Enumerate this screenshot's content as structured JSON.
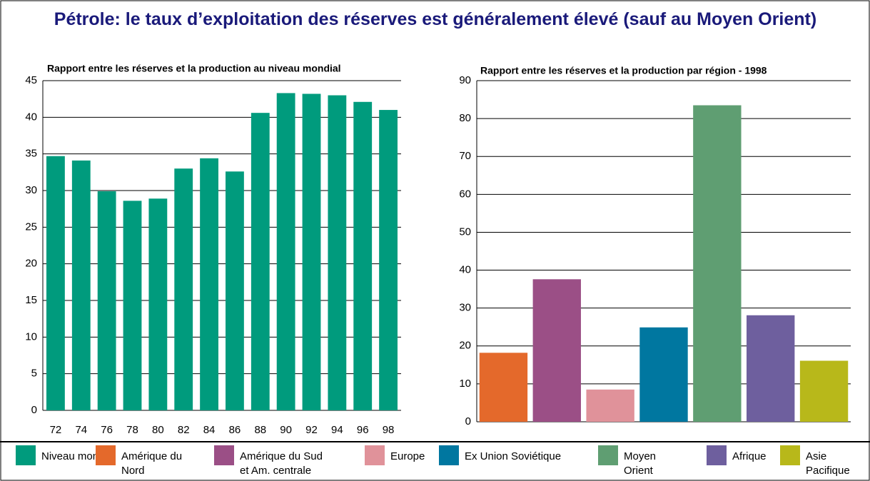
{
  "title": "Pétrole: le taux d’exploitation des réserves est généralement élevé (sauf au Moyen Orient)",
  "chart_data": [
    {
      "type": "bar",
      "title": "Rapport entre les réserves et la production au niveau mondial",
      "categories": [
        "72",
        "74",
        "76",
        "78",
        "80",
        "82",
        "84",
        "86",
        "88",
        "90",
        "92",
        "94",
        "96",
        "98"
      ],
      "series": [
        {
          "name": "Niveau mondial",
          "color": "#009b7d",
          "values": [
            34.7,
            34.1,
            29.9,
            28.6,
            28.9,
            33.0,
            34.4,
            32.6,
            40.6,
            43.3,
            43.2,
            43.0,
            42.1,
            41.0
          ]
        }
      ],
      "ylim": [
        0,
        45
      ],
      "yticks": [
        0,
        5,
        10,
        15,
        20,
        25,
        30,
        35,
        40,
        45
      ],
      "grid": true
    },
    {
      "type": "bar",
      "title": "Rapport entre les réserves et la production par région - 1998",
      "categories": [
        "Amérique du\nNord",
        "Amérique du Sud\net Am. centrale",
        "Europe",
        "Ex Union Soviétique",
        "Moyen\nOrient",
        "Afrique",
        "Asie\nPacifique"
      ],
      "values": [
        18.2,
        37.6,
        8.5,
        24.9,
        83.5,
        28.1,
        16.1
      ],
      "colors": [
        "#e4692b",
        "#9b4f86",
        "#e0929a",
        "#0077a0",
        "#5f9e72",
        "#6e5f9e",
        "#b8b81a"
      ],
      "ylim": [
        0,
        90
      ],
      "yticks": [
        0,
        10,
        20,
        30,
        40,
        50,
        60,
        70,
        80,
        90
      ],
      "grid": true
    }
  ]
}
